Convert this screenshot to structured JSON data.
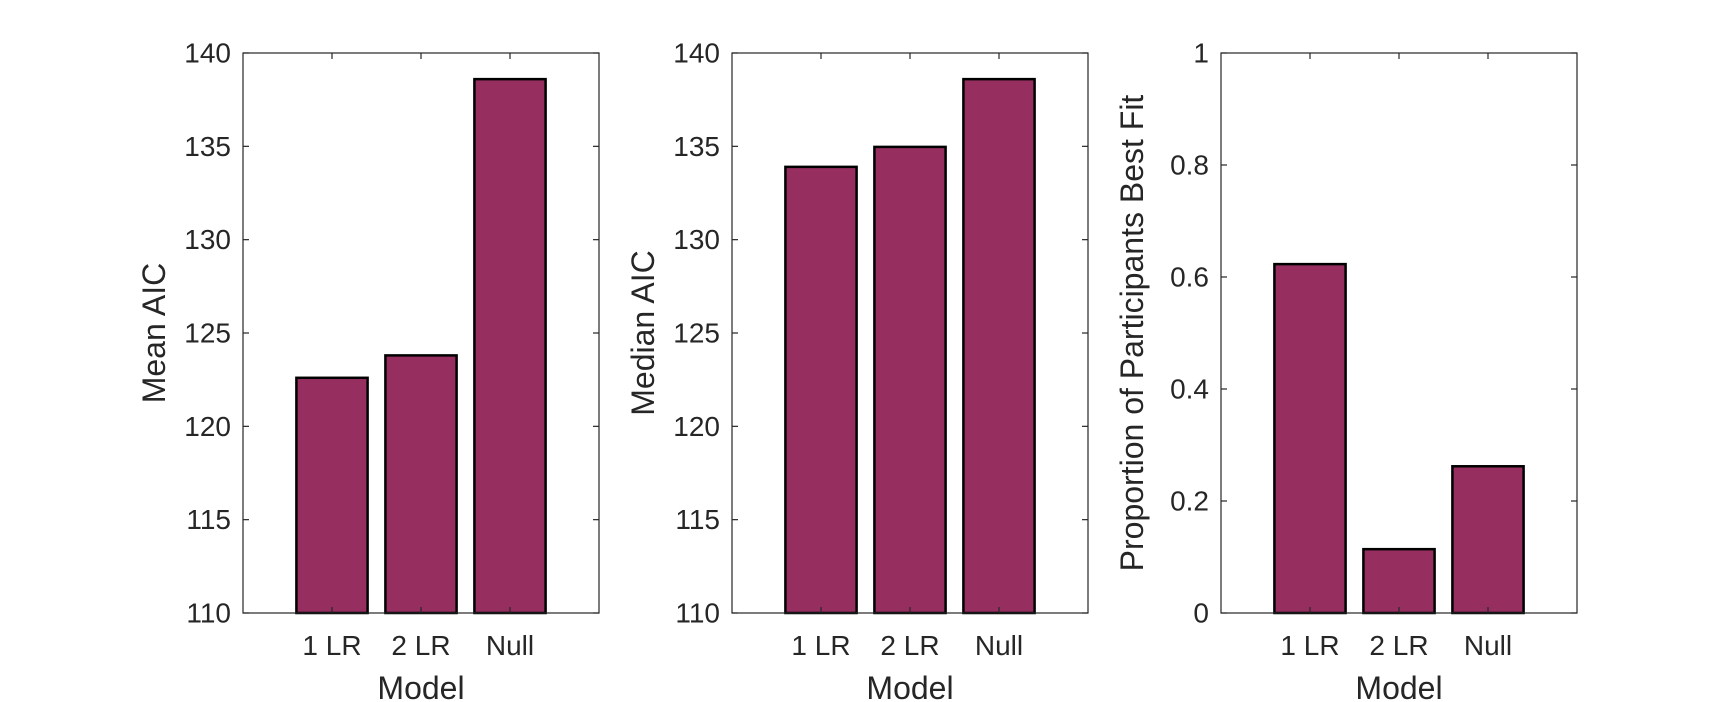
{
  "chart_data": [
    {
      "type": "bar",
      "categories": [
        "1 LR",
        "2 LR",
        "Null"
      ],
      "values": [
        122.6,
        123.8,
        138.6
      ],
      "xlabel": "Model",
      "ylabel": "Mean AIC",
      "ylim": [
        110,
        140
      ],
      "yticks": [
        "110",
        "115",
        "120",
        "125",
        "130",
        "135",
        "140"
      ],
      "grid": false,
      "bar_color": "#962F60"
    },
    {
      "type": "bar",
      "categories": [
        "1 LR",
        "2 LR",
        "Null"
      ],
      "values": [
        133.9,
        134.97,
        138.6
      ],
      "xlabel": "Model",
      "ylabel": "Median AIC",
      "ylim": [
        110,
        140
      ],
      "yticks": [
        "110",
        "115",
        "120",
        "125",
        "130",
        "135",
        "140"
      ],
      "grid": false,
      "bar_color": "#962F60"
    },
    {
      "type": "bar",
      "categories": [
        "1 LR",
        "2 LR",
        "Null"
      ],
      "values": [
        0.623,
        0.114,
        0.262
      ],
      "xlabel": "Model",
      "ylabel": "Proportion of Participants Best Fit",
      "ylim": [
        0,
        1
      ],
      "yticks": [
        "0",
        "0.2",
        "0.4",
        "0.6",
        "0.8",
        "1"
      ],
      "grid": false,
      "bar_color": "#962F60"
    }
  ]
}
